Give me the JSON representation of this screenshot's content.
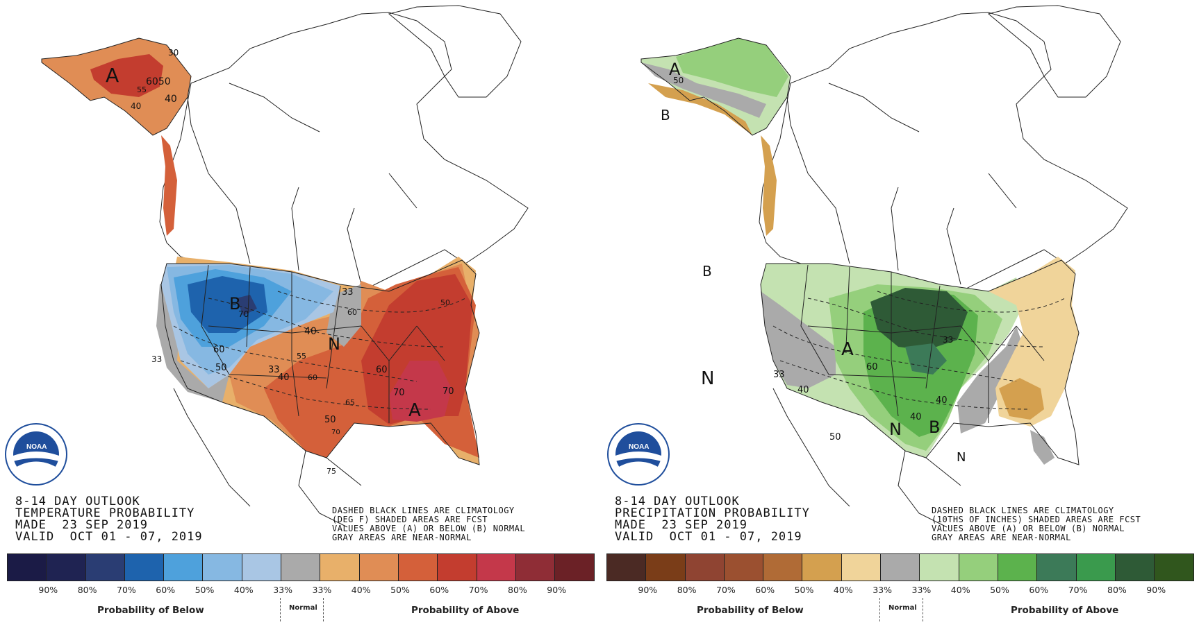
{
  "colorbar_colors": {
    "temperature": [
      "#1b1b46",
      "#1f2352",
      "#2a3d73",
      "#1e63ad",
      "#4ea1dc",
      "#86b8e2",
      "#a9c6e4",
      "#aaaaaa",
      "#e8b06a",
      "#e08d55",
      "#d4603a",
      "#c33d2f",
      "#c4384a",
      "#8f2d36",
      "#6b2126"
    ],
    "precipitation": [
      "#4b2a24",
      "#7a3d18",
      "#8f4432",
      "#9b5030",
      "#b06b36",
      "#d4a04f",
      "#f0d49a",
      "#aaaaaa",
      "#c4e2b1",
      "#95cf7c",
      "#5cb24d",
      "#3c7a58",
      "#3a9a4d",
      "#2e5a36",
      "#30561d"
    ]
  },
  "map_colors": {
    "above_1": "#e8b06a",
    "above_2": "#e08d55",
    "above_3": "#d4603a",
    "above_4": "#c33d2f",
    "above_5": "#c4384a",
    "below_1": "#a9c6e4",
    "below_2": "#86b8e2",
    "below_3": "#4ea1dc",
    "below_4": "#1e63ad",
    "below_5": "#2a3d73",
    "near_normal": "#aaaaaa",
    "wet_1": "#c4e2b1",
    "wet_2": "#95cf7c",
    "wet_3": "#5cb24d",
    "wet_4": "#3c7a58",
    "wet_5": "#2e5a36",
    "dry_1": "#f0d49a",
    "dry_2": "#d4a04f",
    "noaa_blue": "#1f4e9c"
  },
  "temperature": {
    "title": [
      "8-14 DAY OUTLOOK",
      "TEMPERATURE PROBABILITY",
      "MADE  23 SEP 2019",
      "VALID  OCT 01 - 07, 2019"
    ],
    "notes": [
      "DASHED BLACK LINES ARE CLIMATOLOGY",
      "(DEG F) SHADED AREAS ARE FCST",
      "VALUES ABOVE (A) OR BELOW (B) NORMAL",
      "GRAY AREAS ARE NEAR-NORMAL"
    ],
    "map_labels": {
      "a_alaska": "A",
      "a_southeast": "A",
      "b_west": "B",
      "n_plains": "N",
      "v_ak_30": "30",
      "v_ak_6050": "6050",
      "v_ak_55": "55",
      "v_ak_40a": "40",
      "v_ak_40b": "40",
      "v_70_nw": "70",
      "v_60_w": "60",
      "v_50_w": "50",
      "v_33_w": "33",
      "v_40_n": "40",
      "v_33_ne": "33",
      "v_60_ne": "60",
      "v_55_c": "55",
      "v_33_c": "33",
      "v_40_c": "40",
      "v_60_c": "60",
      "v_65_c": "65",
      "v_50_s": "50",
      "v_70_s": "70",
      "v_75_s": "75",
      "v_60_e": "60",
      "v_70_e": "70",
      "v_70_se": "70",
      "v_50_ne": "50"
    }
  },
  "precipitation": {
    "title": [
      "8-14 DAY OUTLOOK",
      "PRECIPITATION PROBABILITY",
      "MADE  23 SEP 2019",
      "VALID  OCT 01 - 07, 2019"
    ],
    "notes": [
      "DASHED BLACK LINES ARE CLIMATOLOGY",
      "(10THS OF INCHES) SHADED AREAS ARE FCST",
      "VALUES ABOVE (A) OR BELOW (B) NORMAL",
      "GRAY AREAS ARE NEAR-NORMAL"
    ],
    "map_labels": {
      "a_alaska": "A",
      "b_alaska": "B",
      "b_nw": "B",
      "a_midwest": "A",
      "n_west": "N",
      "n_south": "N",
      "b_southeast": "B",
      "n_florida": "N",
      "v_50_ak": "50",
      "v_33_w": "33",
      "v_40_c": "40",
      "v_60_mw": "60",
      "v_50_s": "50",
      "v_40_se1": "40",
      "v_40_se2": "40",
      "v_33_e": "33"
    }
  },
  "legend": {
    "ticks": [
      "90%",
      "80%",
      "70%",
      "60%",
      "50%",
      "40%",
      "33%",
      "33%",
      "40%",
      "50%",
      "60%",
      "70%",
      "80%",
      "90%"
    ],
    "below_caption": "Probability of Below",
    "above_caption": "Probability of Above",
    "normal_caption": "Normal"
  }
}
